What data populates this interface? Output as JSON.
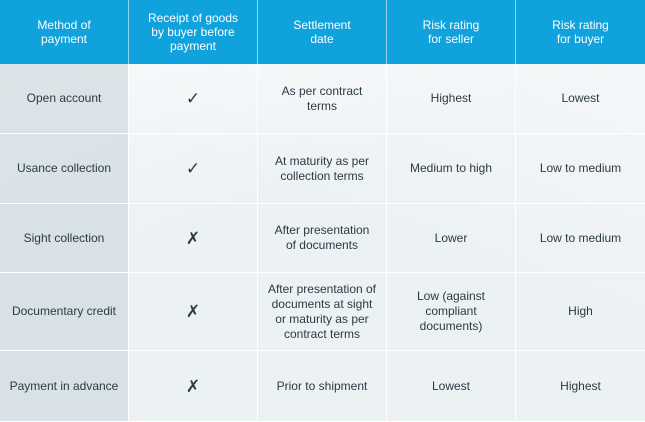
{
  "table": {
    "headers": [
      "Method of\npayment",
      "Receipt of goods\nby buyer before\npayment",
      "Settlement\ndate",
      "Risk rating\nfor seller",
      "Risk rating\nfor buyer"
    ],
    "rows": [
      [
        "Open account",
        "✓",
        "As per contract\nterms",
        "Highest",
        "Lowest"
      ],
      [
        "Usance collection",
        "✓",
        "At maturity as per\ncollection terms",
        "Medium to high",
        "Low to medium"
      ],
      [
        "Sight collection",
        "✗",
        "After presentation\nof documents",
        "Lower",
        "Low to medium"
      ],
      [
        "Documentary credit",
        "✗",
        "After presentation of\ndocuments at sight\nor maturity as per\ncontract terms",
        "Low (against\ncompliant\ndocuments)",
        "High"
      ],
      [
        "Payment in advance",
        "✗",
        "Prior to shipment",
        "Lowest",
        "Highest"
      ]
    ]
  },
  "colors": {
    "header_bg": "#0fa2dc",
    "header_text": "#ffffff",
    "body_bg": "#ecf1f4",
    "body_text": "#2b3a44"
  }
}
